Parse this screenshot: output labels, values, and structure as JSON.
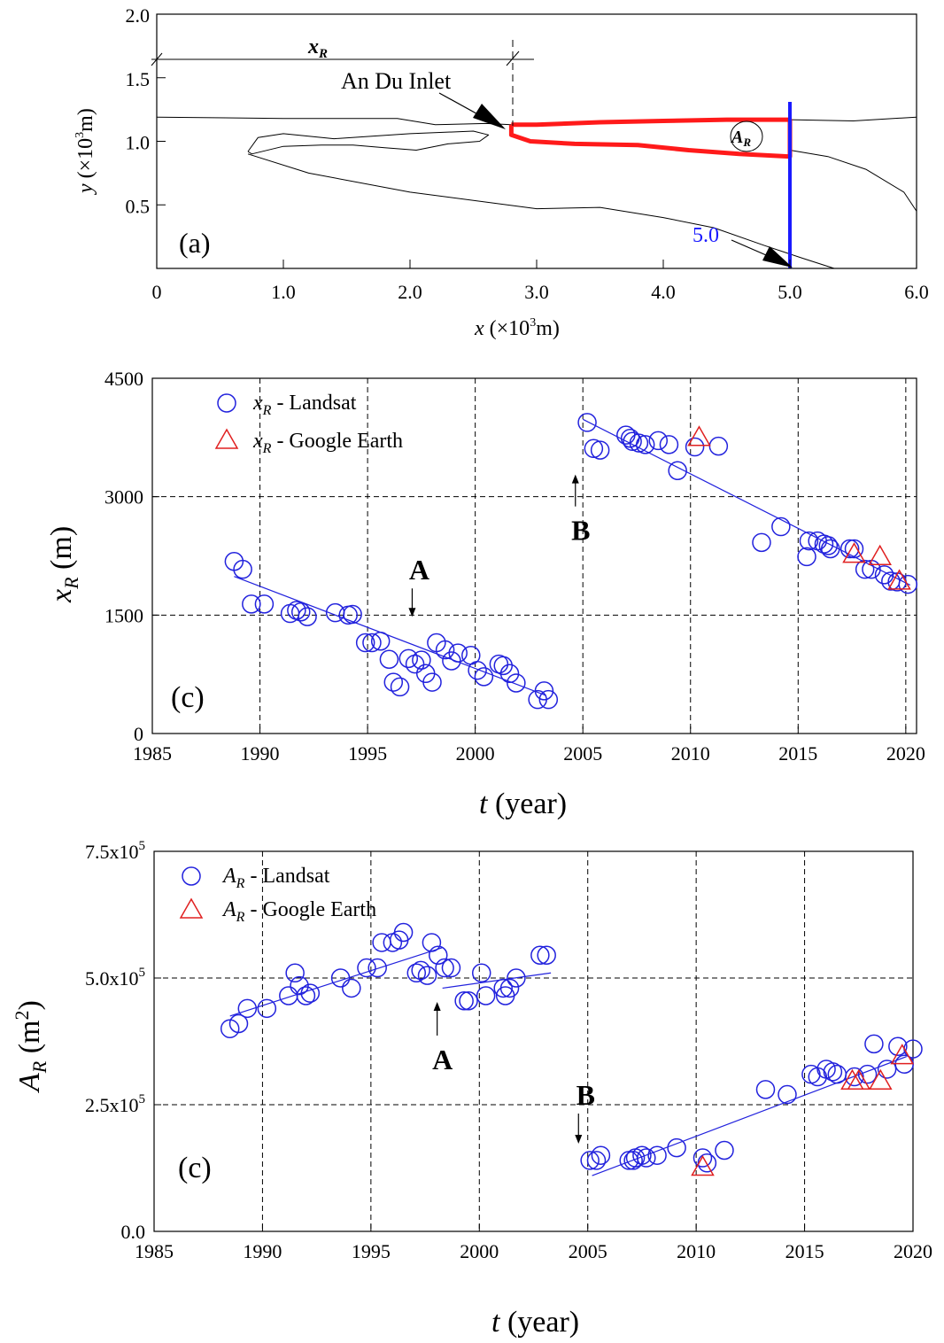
{
  "panel_a": {
    "tag": "(a)",
    "inlet_label": "An Du Inlet",
    "xr_label": "x",
    "xr_sub": "R",
    "ar_label": "A",
    "ar_sub": "R",
    "line_label": "5.0",
    "colors": {
      "spit": "#ff1a1a",
      "transect": "#1a1aff",
      "coast": "#000000"
    }
  },
  "chart_data": [
    {
      "type": "line",
      "title": "",
      "xlabel": "x (×10³m)",
      "ylabel": "y (×10³m)",
      "xlim": [
        0,
        6
      ],
      "ylim": [
        0,
        2
      ],
      "xticks": [
        0,
        1,
        2,
        3,
        4,
        5,
        6
      ],
      "xtick_labels": [
        "0",
        "1.0",
        "2.0",
        "3.0",
        "4.0",
        "5.0",
        "6.0"
      ],
      "yticks": [
        0.5,
        1.0,
        1.5,
        2.0
      ],
      "ytick_labels": [
        "0.5",
        "1.0",
        "1.5",
        "2.0"
      ],
      "series": [
        {
          "name": "coastline",
          "color": "#000000",
          "x": [
            0,
            1.0,
            1.9,
            2.2,
            2.6,
            2.8,
            3.5,
            4.0,
            4.5,
            5.0,
            5.5,
            6.0
          ],
          "y": [
            1.19,
            1.18,
            1.18,
            1.13,
            1.14,
            1.13,
            1.15,
            1.17,
            1.17,
            1.17,
            1.16,
            1.19
          ]
        },
        {
          "name": "island",
          "color": "#000000",
          "x": [
            0.72,
            0.8,
            1.0,
            1.4,
            2.0,
            2.5,
            2.62,
            2.55,
            2.3,
            2.05,
            1.8,
            1.55,
            1.3,
            1.0,
            0.75,
            0.72
          ],
          "y": [
            0.92,
            1.03,
            1.06,
            1.02,
            1.06,
            1.08,
            1.05,
            1.0,
            0.98,
            0.93,
            0.95,
            0.97,
            0.97,
            0.96,
            0.9,
            0.92
          ]
        },
        {
          "name": "lower-shore",
          "color": "#000000",
          "x": [
            0.72,
            1.2,
            2.0,
            3.0,
            3.5,
            4.0,
            4.4,
            4.8,
            5.1,
            5.35
          ],
          "y": [
            0.9,
            0.75,
            0.6,
            0.47,
            0.48,
            0.4,
            0.32,
            0.18,
            0.08,
            0.0
          ]
        },
        {
          "name": "right-shore",
          "color": "#000000",
          "x": [
            5.0,
            5.3,
            5.6,
            5.9,
            6.0
          ],
          "y": [
            0.93,
            0.88,
            0.78,
            0.6,
            0.45
          ]
        },
        {
          "name": "spit",
          "color": "#ff1a1a",
          "x": [
            2.8,
            3.0,
            3.5,
            4.0,
            4.5,
            5.0,
            5.0,
            4.6,
            4.2,
            3.8,
            3.3,
            2.95,
            2.8,
            2.8
          ],
          "y": [
            1.13,
            1.13,
            1.15,
            1.16,
            1.17,
            1.17,
            0.88,
            0.9,
            0.93,
            0.97,
            0.98,
            1.0,
            1.05,
            1.13
          ]
        },
        {
          "name": "transect",
          "color": "#1a1aff",
          "x": [
            5.0,
            5.0
          ],
          "y": [
            1.31,
            0.0
          ]
        }
      ]
    },
    {
      "type": "scatter",
      "title": "",
      "tag": "(c)",
      "xlabel_italic": "t",
      "xlabel_rest": " (year)",
      "ylabel_main": "x",
      "ylabel_sub": "R",
      "ylabel_rest": " (m)",
      "xlim": [
        1985,
        2020.5
      ],
      "ylim": [
        0,
        4500
      ],
      "xticks": [
        1985,
        1990,
        1995,
        2000,
        2005,
        2010,
        2015,
        2020
      ],
      "yticks": [
        0,
        1500,
        3000,
        4500
      ],
      "grid": true,
      "legend_position": "top-left",
      "annotations": [
        {
          "text": "A",
          "x": 1997.4,
          "y": 1950,
          "arrow": "down"
        },
        {
          "text": "B",
          "x": 2004.9,
          "y": 2450,
          "arrow": "up"
        }
      ],
      "series": [
        {
          "name": "x_R - Landsat",
          "marker": "circle",
          "color": "#2222dd",
          "x": [
            1988.8,
            1989.2,
            1989.6,
            1990.2,
            1991.4,
            1991.7,
            1991.9,
            1992.2,
            1993.5,
            1994.1,
            1994.3,
            1994.9,
            1995.2,
            1995.6,
            1996.0,
            1996.2,
            1996.5,
            1996.9,
            1997.2,
            1997.5,
            1997.7,
            1998.0,
            1998.2,
            1998.6,
            1998.9,
            1999.2,
            1999.8,
            2000.1,
            2000.4,
            2001.1,
            2001.3,
            2001.6,
            2001.9,
            2002.9,
            2003.2,
            2003.4,
            2005.2,
            2005.5,
            2005.8,
            2007.0,
            2007.2,
            2007.3,
            2007.6,
            2007.9,
            2008.5,
            2009.0,
            2009.4,
            2010.2,
            2011.3,
            2013.3,
            2014.2,
            2015.4,
            2015.5,
            2015.9,
            2016.2,
            2016.4,
            2016.5,
            2017.4,
            2017.6,
            2018.1,
            2018.4,
            2019.0,
            2019.3,
            2019.6,
            2020.1
          ],
          "y": [
            2180,
            2080,
            1640,
            1640,
            1520,
            1560,
            1540,
            1480,
            1530,
            1500,
            1510,
            1150,
            1150,
            1170,
            940,
            650,
            590,
            950,
            880,
            930,
            760,
            650,
            1150,
            1060,
            920,
            1020,
            990,
            800,
            720,
            880,
            860,
            760,
            640,
            430,
            540,
            430,
            3940,
            3610,
            3590,
            3780,
            3740,
            3700,
            3680,
            3660,
            3710,
            3660,
            3330,
            3630,
            3640,
            2420,
            2620,
            2240,
            2440,
            2440,
            2400,
            2380,
            2340,
            2340,
            2340,
            2080,
            2080,
            2010,
            1930,
            1920,
            1890
          ]
        },
        {
          "name": "x_R - Google Earth",
          "marker": "triangle",
          "color": "#e02020",
          "x": [
            2010.4,
            2017.6,
            2018.8,
            2019.7
          ],
          "y": [
            3740,
            2260,
            2230,
            1920
          ]
        }
      ],
      "fits": [
        {
          "x": [
            1988.8,
            2003.3
          ],
          "y": [
            1990,
            480
          ]
        },
        {
          "x": [
            2005.0,
            2020.2
          ],
          "y": [
            3980,
            1880
          ]
        }
      ]
    },
    {
      "type": "scatter",
      "title": "",
      "tag": "(c)",
      "xlabel_italic": "t",
      "xlabel_rest": " (year)",
      "ylabel_main": "A",
      "ylabel_sub": "R",
      "ylabel_rest": " (m",
      "ylabel_sup": "2",
      "ylabel_close": ")",
      "xlim": [
        1985,
        2020
      ],
      "ylim": [
        0,
        750000
      ],
      "xticks": [
        1985,
        1990,
        1995,
        2000,
        2005,
        2010,
        2015,
        2020
      ],
      "yticks": [
        0,
        250000,
        500000,
        750000
      ],
      "ytick_labels": [
        {
          "base": "0.0",
          "exp": ""
        },
        {
          "base": "2.5x10",
          "exp": "5"
        },
        {
          "base": "5.0x10",
          "exp": "5"
        },
        {
          "base": "7.5x10",
          "exp": "5"
        }
      ],
      "grid": true,
      "legend_position": "top-left",
      "annotations": [
        {
          "text": "A",
          "x": 1998.3,
          "y": 320000,
          "arrow": "up"
        },
        {
          "text": "B",
          "x": 2004.9,
          "y": 250000,
          "arrow": "down"
        }
      ],
      "series": [
        {
          "name": "A_R - Landsat",
          "marker": "circle",
          "color": "#2222dd",
          "x": [
            1988.5,
            1988.9,
            1989.3,
            1990.2,
            1991.2,
            1991.5,
            1991.7,
            1992.0,
            1992.2,
            1993.6,
            1994.1,
            1994.8,
            1995.3,
            1995.5,
            1996.0,
            1996.3,
            1996.5,
            1997.1,
            1997.3,
            1997.6,
            1997.8,
            1998.1,
            1998.4,
            1998.7,
            1999.3,
            1999.5,
            2000.1,
            2000.3,
            2001.1,
            2001.2,
            2001.4,
            2001.7,
            2002.8,
            2003.1,
            2005.1,
            2005.4,
            2005.6,
            2006.9,
            2007.1,
            2007.2,
            2007.5,
            2007.7,
            2008.2,
            2009.1,
            2010.3,
            2010.5,
            2011.3,
            2013.2,
            2014.2,
            2015.3,
            2015.6,
            2016.0,
            2016.3,
            2016.5,
            2017.3,
            2017.9,
            2018.2,
            2018.8,
            2019.3,
            2019.6,
            2020.0
          ],
          "y": [
            400000,
            410000,
            440000,
            440000,
            465000,
            510000,
            485000,
            465000,
            470000,
            500000,
            480000,
            520000,
            520000,
            570000,
            570000,
            575000,
            590000,
            510000,
            515000,
            505000,
            570000,
            545000,
            520000,
            520000,
            455000,
            455000,
            510000,
            465000,
            480000,
            465000,
            480000,
            500000,
            545000,
            545000,
            140000,
            140000,
            150000,
            140000,
            140000,
            145000,
            150000,
            145000,
            150000,
            165000,
            145000,
            135000,
            160000,
            280000,
            270000,
            310000,
            305000,
            320000,
            315000,
            310000,
            305000,
            310000,
            370000,
            320000,
            365000,
            330000,
            360000
          ]
        },
        {
          "name": "A_R - Google Earth",
          "marker": "triangle",
          "color": "#e02020",
          "x": [
            2010.3,
            2017.2,
            2017.5,
            2018.5,
            2019.5
          ],
          "y": [
            125000,
            295000,
            295000,
            295000,
            345000
          ]
        }
      ],
      "fits": [
        {
          "x": [
            1988.5,
            1998.3
          ],
          "y": [
            425000,
            560000
          ]
        },
        {
          "x": [
            1998.3,
            2003.3
          ],
          "y": [
            480000,
            510000
          ]
        },
        {
          "x": [
            2005.2,
            2019.7
          ],
          "y": [
            110000,
            345000
          ]
        }
      ]
    }
  ]
}
